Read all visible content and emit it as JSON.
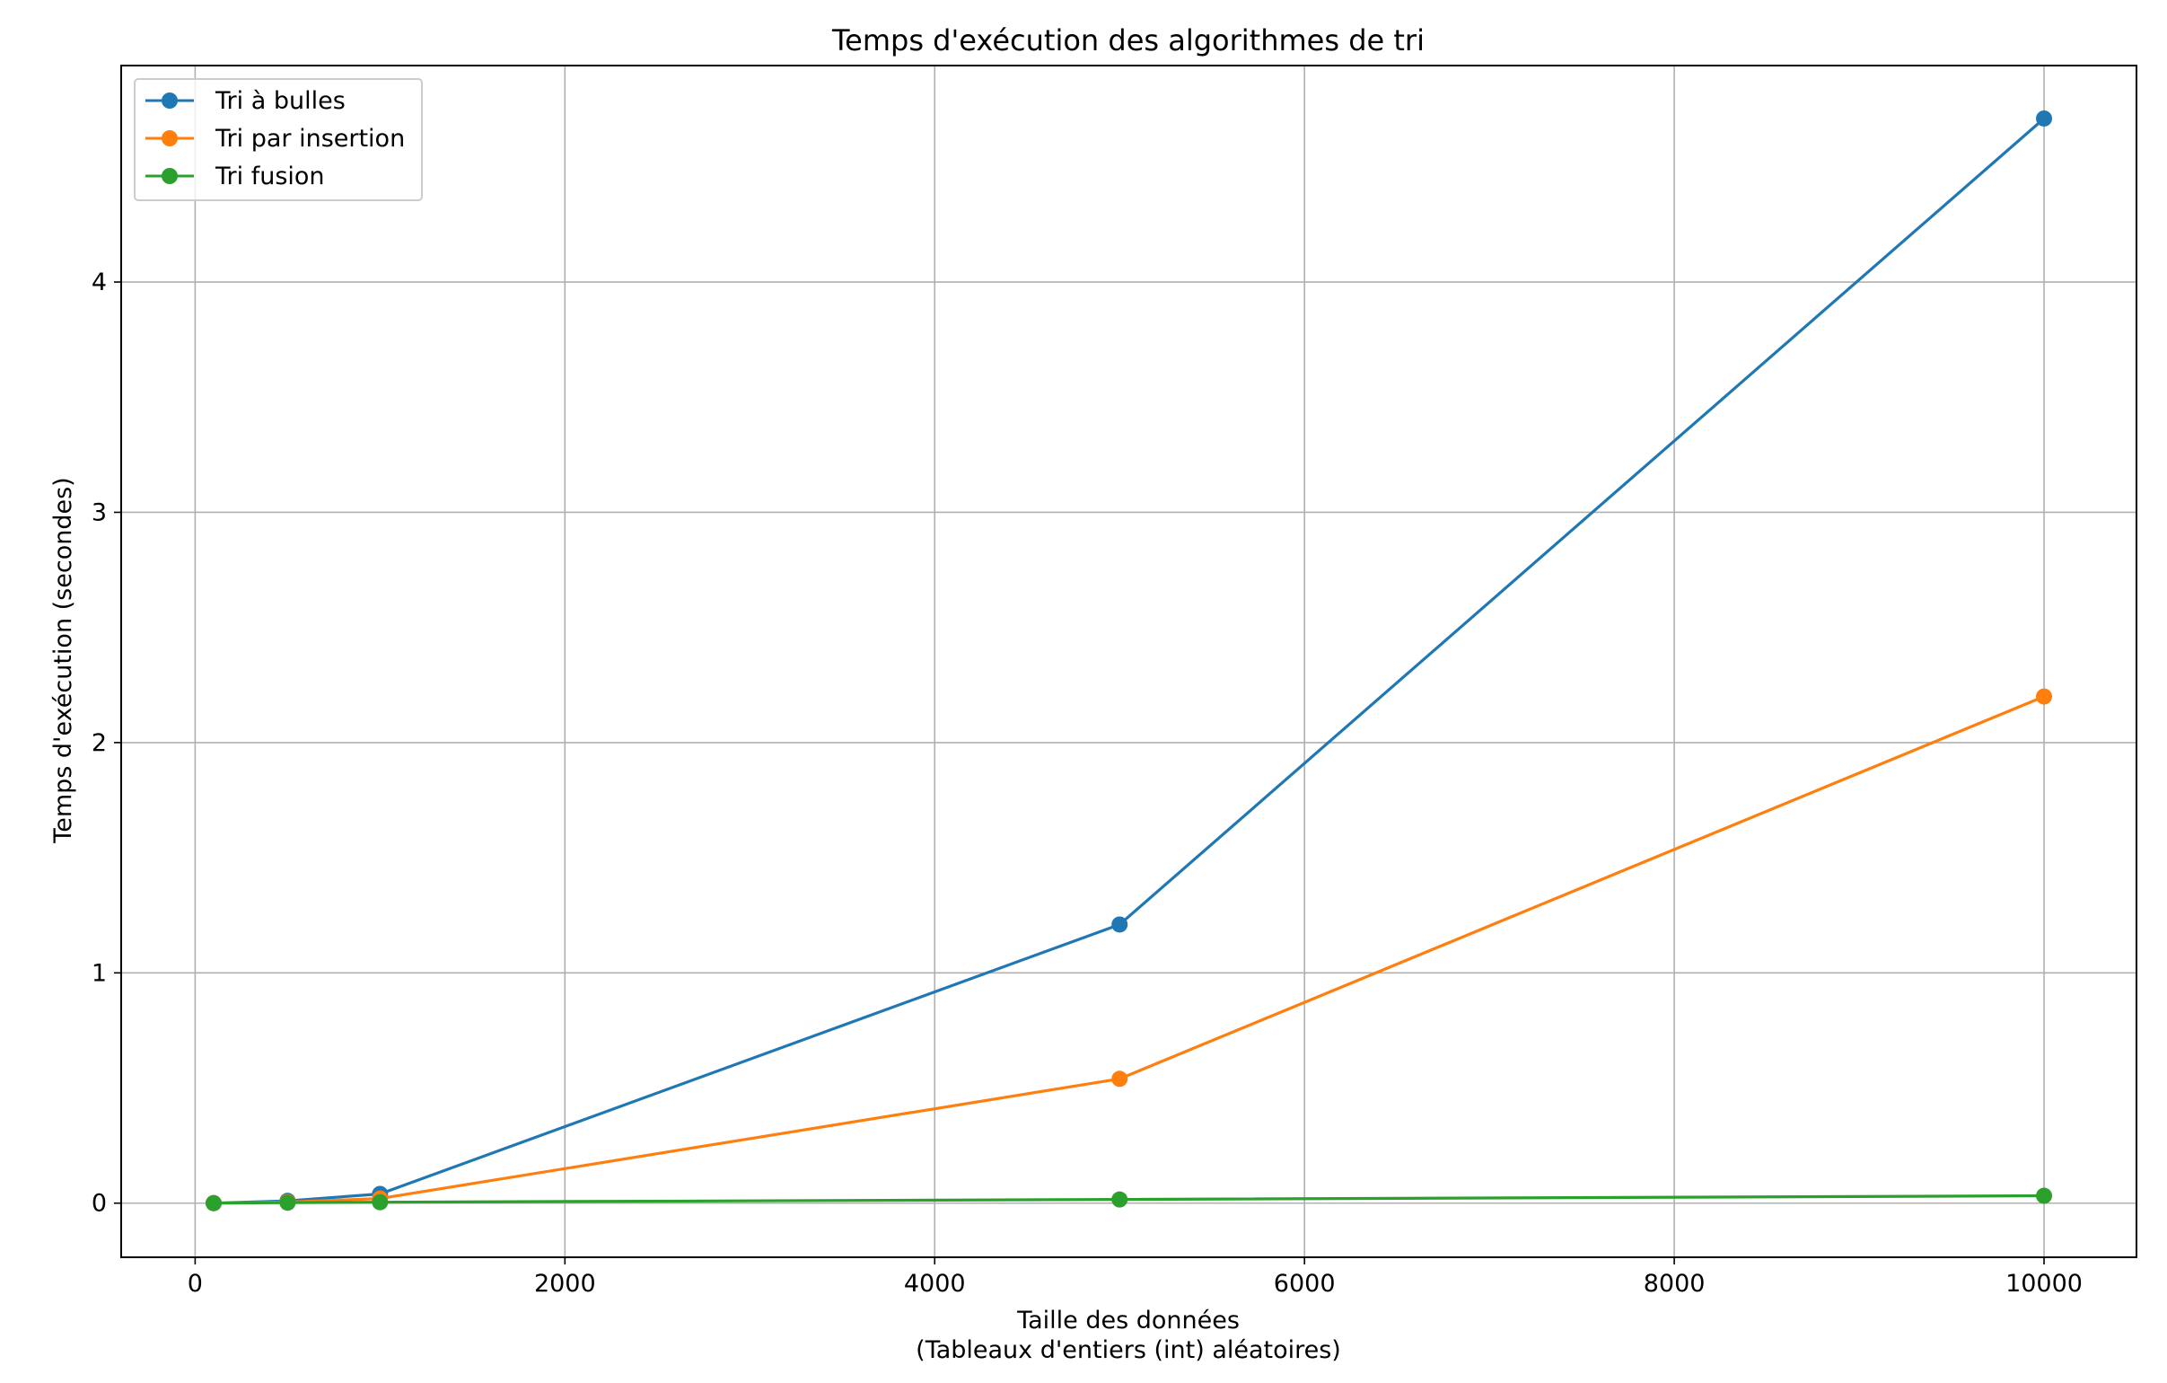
{
  "chart_data": {
    "type": "line",
    "title": "Temps d'exécution des algorithmes de tri",
    "xlabel_lines": [
      "Taille des données",
      "(Tableaux d'entiers (int) aléatoires)"
    ],
    "ylabel": "Temps d'exécution (secondes)",
    "xlim": [
      -400,
      10500
    ],
    "ylim": [
      -0.235,
      4.94
    ],
    "x_ticks": [
      0,
      2000,
      4000,
      6000,
      8000,
      10000
    ],
    "x_tick_labels": [
      "0",
      "2000",
      "4000",
      "6000",
      "8000",
      "10000"
    ],
    "y_ticks": [
      0,
      1,
      2,
      3,
      4
    ],
    "y_tick_labels": [
      "0",
      "1",
      "2",
      "3",
      "4"
    ],
    "grid": true,
    "legend_position": "top-left",
    "x": [
      100,
      500,
      1000,
      5000,
      10000
    ],
    "series": [
      {
        "name": "Tri à bulles",
        "color": "#1f77b4",
        "marker": "circle",
        "values": [
          0.0,
          0.01,
          0.04,
          1.21,
          4.71
        ]
      },
      {
        "name": "Tri par insertion",
        "color": "#ff7f0e",
        "marker": "circle",
        "values": [
          0.0,
          0.005,
          0.02,
          0.54,
          2.2
        ]
      },
      {
        "name": "Tri fusion",
        "color": "#2ca02c",
        "marker": "circle",
        "values": [
          0.0,
          0.002,
          0.004,
          0.016,
          0.032
        ]
      }
    ]
  }
}
